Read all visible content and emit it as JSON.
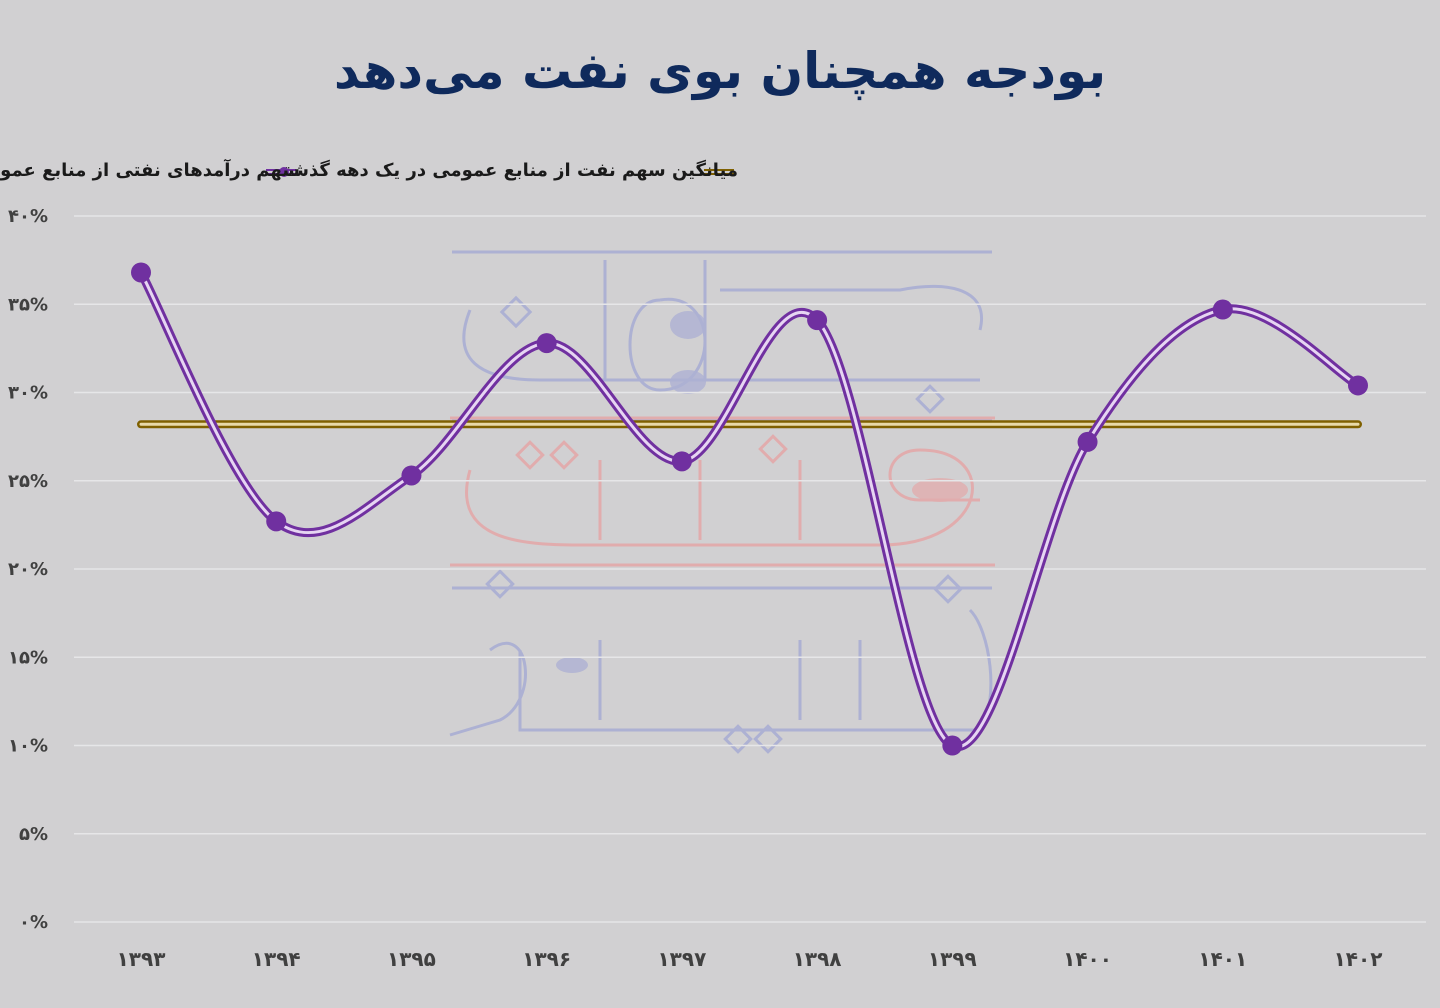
{
  "chart_data": {
    "type": "line",
    "title": "بودجه همچنان بوی نفت می‌دهد",
    "categories": [
      "۱۳۹۳",
      "۱۳۹۴",
      "۱۳۹۵",
      "۱۳۹۶",
      "۱۳۹۷",
      "۱۳۹۸",
      "۱۳۹۹",
      "۱۴۰۰",
      "۱۴۰۱",
      "۱۴۰۲"
    ],
    "series": [
      {
        "name": "سهم درآمدهای نفتی از منابع عمومی دولت",
        "values": [
          36.8,
          22.7,
          25.3,
          32.8,
          26.1,
          34.1,
          10.0,
          27.2,
          34.7,
          30.4
        ],
        "color": "#7030a0"
      },
      {
        "name": "میانگین سهم نفت از منابع عمومی در یک دهه گذشته",
        "values": [
          28.2,
          28.2,
          28.2,
          28.2,
          28.2,
          28.2,
          28.2,
          28.2,
          28.2,
          28.2
        ],
        "color": "#7f6000"
      }
    ],
    "yticks": [
      "۰%",
      "۵%",
      "۱۰%",
      "۱۵%",
      "۲۰%",
      "۲۵%",
      "۳۰%",
      "۳۵%",
      "۴۰%"
    ],
    "ylim": [
      0,
      40
    ],
    "grid": true,
    "legend_position": "top"
  },
  "colors": {
    "background": "#d1d0d2",
    "title": "#0f2a5c",
    "grid": "#e6e6e8",
    "tick_text": "#404040"
  },
  "watermark": {
    "icon": "watermark-logo"
  }
}
